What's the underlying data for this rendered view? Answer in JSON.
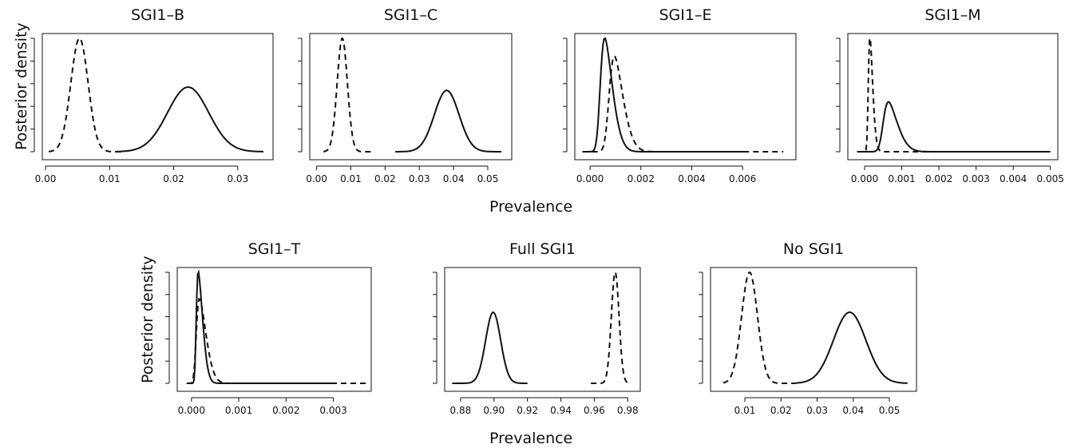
{
  "figure": {
    "xlabel_row1": "Prevalence",
    "xlabel_row2": "Prevalence",
    "ylabel_row1": "Posterior density",
    "ylabel_row2": "Posterior density"
  },
  "chart_data": [
    {
      "type": "line",
      "title": "SGI1–B",
      "xticks": [
        "0.00",
        "0.01",
        "0.02",
        "0.03"
      ],
      "xtick_values": [
        0.0,
        0.01,
        0.02,
        0.03
      ],
      "xlim": [
        -0.0005,
        0.0355
      ],
      "ylim": [
        0,
        1.06
      ],
      "series": [
        {
          "style": "dashed",
          "mean": 0.0053,
          "sd": 0.00135,
          "peak": 1.0,
          "skew": 0,
          "range": [
            0.0005,
            0.012
          ]
        },
        {
          "style": "solid",
          "mean": 0.0215,
          "sd": 0.0033,
          "peak": 0.57,
          "skew": 0.3,
          "range": [
            0.011,
            0.034
          ]
        }
      ]
    },
    {
      "type": "line",
      "title": "SGI1–C",
      "xticks": [
        "0.00",
        "0.01",
        "0.02",
        "0.03",
        "0.04",
        "0.05"
      ],
      "xtick_values": [
        0.0,
        0.01,
        0.02,
        0.03,
        0.04,
        0.05
      ],
      "xlim": [
        -0.002,
        0.057
      ],
      "ylim": [
        0,
        1.06
      ],
      "series": [
        {
          "style": "dashed",
          "mean": 0.0075,
          "sd": 0.0015,
          "peak": 1.0,
          "skew": 0,
          "range": [
            0.002,
            0.016
          ]
        },
        {
          "style": "solid",
          "mean": 0.038,
          "sd": 0.0036,
          "peak": 0.54,
          "skew": 0,
          "range": [
            0.023,
            0.054
          ]
        }
      ]
    },
    {
      "type": "line",
      "title": "SGI1–E",
      "xticks": [
        "0.000",
        "0.002",
        "0.004",
        "0.006"
      ],
      "xtick_values": [
        0.0,
        0.002,
        0.004,
        0.006
      ],
      "xlim": [
        -0.0006,
        0.0081
      ],
      "ylim": [
        0,
        1.06
      ],
      "series": [
        {
          "style": "solid",
          "mean": 0.0004,
          "sd": 0.0004,
          "peak": 1.0,
          "skew": 3.5,
          "range": [
            -0.0003,
            0.0062
          ]
        },
        {
          "style": "dashed",
          "mean": 0.00075,
          "sd": 0.00045,
          "peak": 0.84,
          "skew": 3.2,
          "range": [
            -0.0003,
            0.0076
          ]
        }
      ]
    },
    {
      "type": "line",
      "title": "SGI1–M",
      "xticks": [
        "0.000",
        "0.001",
        "0.002",
        "0.003",
        "0.004",
        "0.005"
      ],
      "xtick_values": [
        0.0,
        0.001,
        0.002,
        0.003,
        0.004,
        0.005
      ],
      "xlim": [
        -0.00045,
        0.0052
      ],
      "ylim": [
        0,
        1.06
      ],
      "series": [
        {
          "style": "dashed",
          "mean": 0.0001,
          "sd": 0.0001,
          "peak": 1.0,
          "skew": 3.5,
          "range": [
            -0.0002,
            0.0036
          ]
        },
        {
          "style": "solid",
          "mean": 0.0005,
          "sd": 0.00032,
          "peak": 0.44,
          "skew": 3.5,
          "range": [
            -0.0002,
            0.005
          ]
        }
      ]
    },
    {
      "type": "line",
      "title": "SGI1–T",
      "xticks": [
        "0.000",
        "0.001",
        "0.002",
        "0.003"
      ],
      "xtick_values": [
        0.0,
        0.001,
        0.002,
        0.003
      ],
      "xlim": [
        -0.0003,
        0.0038
      ],
      "ylim": [
        0,
        1.06
      ],
      "series": [
        {
          "style": "solid",
          "mean": 0.0001,
          "sd": 0.00012,
          "peak": 1.0,
          "skew": 5,
          "range": [
            -0.0001,
            0.003
          ]
        },
        {
          "style": "dashed",
          "mean": 0.0001,
          "sd": 0.00018,
          "peak": 0.76,
          "skew": 4.5,
          "range": [
            -0.0001,
            0.0037
          ]
        }
      ]
    },
    {
      "type": "line",
      "title": "Full SGI1",
      "xticks": [
        "0.88",
        "0.90",
        "0.92",
        "0.94",
        "0.96",
        "0.98"
      ],
      "xtick_values": [
        0.88,
        0.9,
        0.92,
        0.94,
        0.96,
        0.98
      ],
      "xlim": [
        0.8705,
        0.9875
      ],
      "ylim": [
        0,
        1.06
      ],
      "series": [
        {
          "style": "solid",
          "mean": 0.8995,
          "sd": 0.0045,
          "peak": 0.64,
          "skew": 0,
          "range": [
            0.875,
            0.92
          ]
        },
        {
          "style": "dashed",
          "mean": 0.9725,
          "sd": 0.0023,
          "peak": 1.0,
          "skew": 0,
          "range": [
            0.958,
            0.98
          ]
        }
      ]
    },
    {
      "type": "line",
      "title": "No SGI1",
      "xticks": [
        "0.01",
        "0.02",
        "0.03",
        "0.04",
        "0.05"
      ],
      "xtick_values": [
        0.01,
        0.02,
        0.03,
        0.04,
        0.05
      ],
      "xlim": [
        0.0005,
        0.0575
      ],
      "ylim": [
        0,
        1.06
      ],
      "series": [
        {
          "style": "dashed",
          "mean": 0.0113,
          "sd": 0.0022,
          "peak": 1.0,
          "skew": 0,
          "range": [
            0.004,
            0.024
          ]
        },
        {
          "style": "solid",
          "mean": 0.039,
          "sd": 0.0045,
          "peak": 0.64,
          "skew": 0,
          "range": [
            0.024,
            0.055
          ]
        }
      ]
    }
  ]
}
